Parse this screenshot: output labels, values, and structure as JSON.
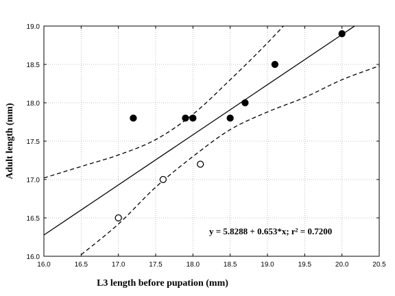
{
  "chart_data": {
    "type": "scatter",
    "xlabel": "L3 length before pupation (mm)",
    "ylabel": "Adult length (mm)",
    "xlim": [
      16.0,
      20.5
    ],
    "ylim": [
      16.0,
      19.0
    ],
    "xticks": [
      "16.0",
      "16.5",
      "17.0",
      "17.5",
      "18.0",
      "18.5",
      "19.0",
      "19.5",
      "20.0",
      "20.5"
    ],
    "yticks": [
      "16.0",
      "16.5",
      "17.0",
      "17.5",
      "18.0",
      "18.5",
      "19.0"
    ],
    "grid": true,
    "series": [
      {
        "marker": "filled-circle",
        "points": [
          {
            "x": 17.2,
            "y": 17.8
          },
          {
            "x": 17.9,
            "y": 17.8
          },
          {
            "x": 18.0,
            "y": 17.8
          },
          {
            "x": 18.5,
            "y": 17.8
          },
          {
            "x": 18.7,
            "y": 18.0
          },
          {
            "x": 19.1,
            "y": 18.5
          },
          {
            "x": 20.0,
            "y": 18.9
          }
        ]
      },
      {
        "marker": "open-circle",
        "points": [
          {
            "x": 17.0,
            "y": 16.5
          },
          {
            "x": 17.6,
            "y": 17.0
          },
          {
            "x": 18.1,
            "y": 17.2
          }
        ]
      }
    ],
    "regression": {
      "intercept": 5.8288,
      "slope": 0.653
    },
    "confidence_band": {
      "upper": [
        {
          "x": 16.0,
          "y": 17.02
        },
        {
          "x": 16.5,
          "y": 17.17
        },
        {
          "x": 17.0,
          "y": 17.32
        },
        {
          "x": 17.5,
          "y": 17.52
        },
        {
          "x": 18.0,
          "y": 17.85
        },
        {
          "x": 18.5,
          "y": 18.3
        },
        {
          "x": 19.0,
          "y": 18.78
        },
        {
          "x": 19.5,
          "y": 19.3
        }
      ],
      "lower": [
        {
          "x": 16.5,
          "y": 16.02
        },
        {
          "x": 17.0,
          "y": 16.42
        },
        {
          "x": 17.5,
          "y": 16.9
        },
        {
          "x": 18.0,
          "y": 17.3
        },
        {
          "x": 18.5,
          "y": 17.65
        },
        {
          "x": 19.0,
          "y": 17.88
        },
        {
          "x": 19.5,
          "y": 18.07
        },
        {
          "x": 20.0,
          "y": 18.3
        },
        {
          "x": 20.5,
          "y": 18.48
        }
      ]
    },
    "annotation": "y = 5.8288 + 0.653*x; r² = 0.7200"
  }
}
